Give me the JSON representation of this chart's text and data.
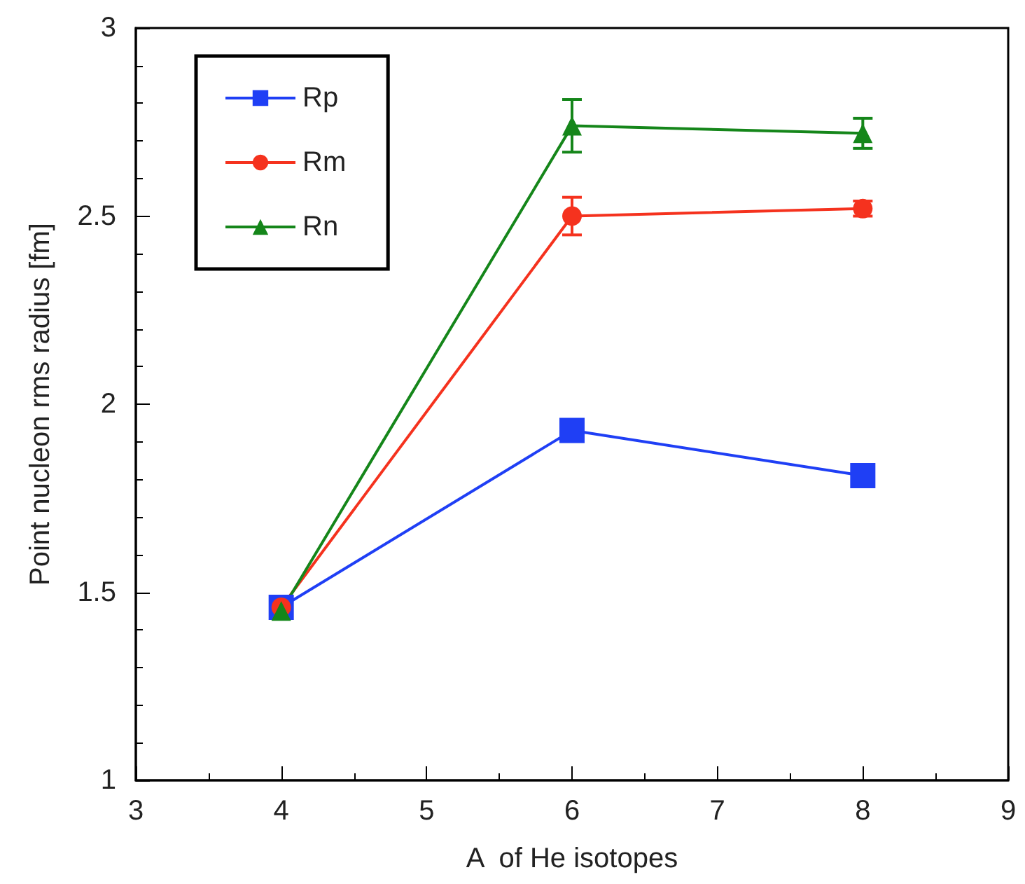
{
  "chart_data": {
    "type": "line",
    "xlabel": "A  of He isotopes",
    "ylabel": "Point nucleon rms radius [fm]",
    "x": [
      4,
      6,
      8
    ],
    "series": [
      {
        "name": "Rp",
        "color": "#1f3ff5",
        "marker": "square",
        "values": [
          1.46,
          1.93,
          1.81
        ]
      },
      {
        "name": "Rm",
        "color": "#f5321e",
        "marker": "circle",
        "values": [
          1.46,
          2.5,
          2.52
        ],
        "errors": [
          null,
          0.05,
          0.02
        ]
      },
      {
        "name": "Rn",
        "color": "#15861a",
        "marker": "triangle",
        "values": [
          1.45,
          2.74,
          2.72
        ],
        "errors": [
          null,
          0.07,
          0.04
        ]
      }
    ],
    "xlim": [
      3,
      9
    ],
    "xticks": [
      3,
      4,
      5,
      6,
      7,
      8,
      9
    ],
    "ylim": [
      1,
      3
    ],
    "yticks": [
      1,
      1.5,
      2,
      2.5,
      3
    ],
    "grid": false,
    "legend": "top left"
  }
}
